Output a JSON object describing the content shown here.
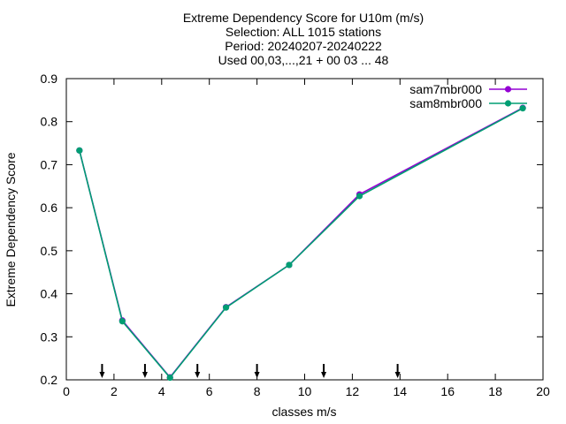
{
  "chart_data": {
    "type": "line",
    "title_lines": [
      "Extreme Dependency Score  for U10m (m/s)",
      "Selection: ALL    1015 stations",
      "Period: 20240207-20240222",
      "Used 00,03,...,21 + 00 03 ... 48"
    ],
    "xlabel": "classes m/s",
    "ylabel": "Extreme Dependency Score",
    "xlim": [
      0,
      20
    ],
    "ylim": [
      0.2,
      0.9
    ],
    "xticks": [
      0,
      2,
      4,
      6,
      8,
      10,
      12,
      14,
      16,
      18,
      20
    ],
    "yticks": [
      0.2,
      0.3,
      0.4,
      0.5,
      0.6,
      0.7,
      0.8,
      0.9
    ],
    "xtick_labels": [
      "0",
      "2",
      "4",
      "6",
      "8",
      "10",
      "12",
      "14",
      "16",
      "18",
      "20"
    ],
    "ytick_labels": [
      "0.2",
      "0.3",
      "0.4",
      "0.5",
      "0.6",
      "0.7",
      "0.8",
      "0.9"
    ],
    "grid": false,
    "legend_position": "top-right",
    "class_markers_x": [
      1.5,
      3.3,
      5.5,
      8.0,
      10.8,
      13.9
    ],
    "series": [
      {
        "name": "sam7mbr000",
        "color": "#9400d3",
        "x": [
          0.55,
          2.35,
          4.35,
          6.7,
          9.35,
          12.3,
          19.15
        ],
        "y": [
          0.733,
          0.338,
          0.206,
          0.369,
          0.467,
          0.631,
          0.832
        ]
      },
      {
        "name": "sam8mbr000",
        "color": "#009e73",
        "x": [
          0.55,
          2.35,
          4.35,
          6.7,
          9.35,
          12.3,
          19.15
        ],
        "y": [
          0.733,
          0.336,
          0.205,
          0.368,
          0.467,
          0.627,
          0.831
        ]
      }
    ]
  }
}
